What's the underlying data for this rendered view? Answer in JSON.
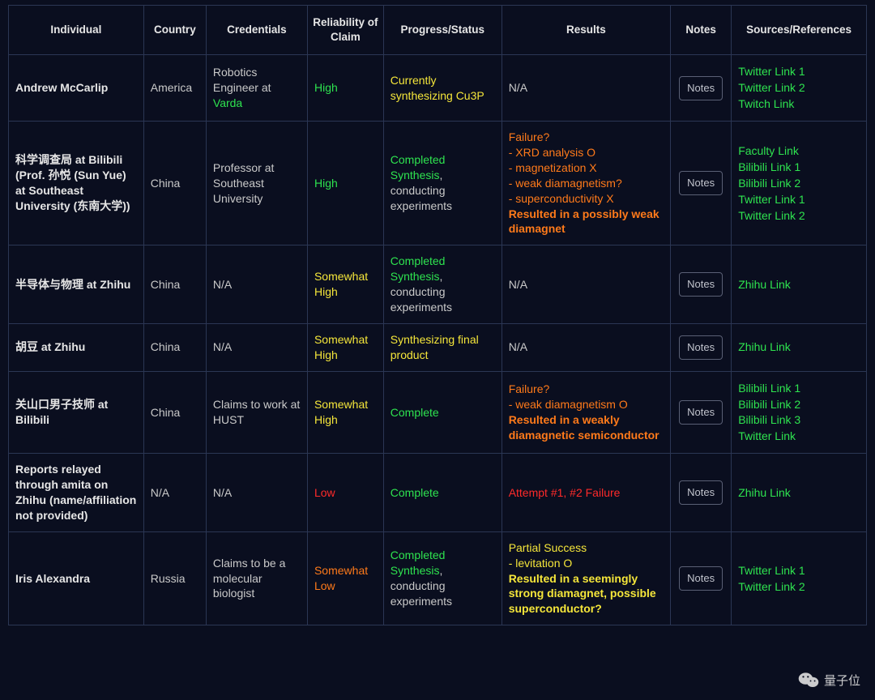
{
  "table": {
    "columns": [
      "Individual",
      "Country",
      "Credentials",
      "Reliability of Claim",
      "Progress/Status",
      "Results",
      "Notes",
      "Sources/References"
    ],
    "notes_button_label": "Notes",
    "colors": {
      "background": "#0a0e1f",
      "border": "#2b3654",
      "text": "#c9c9c9",
      "bold_text": "#e6e6e6",
      "link_green": "#2ee34f",
      "yellow": "#f5e63a",
      "orange": "#ff7a1a",
      "red": "#ff2a2a"
    },
    "rows": [
      {
        "individual": "Andrew McCarlip",
        "country": "America",
        "credentials_pre": "Robotics Engineer at ",
        "credentials_link": "Varda",
        "reliability": "High",
        "reliability_class": "green",
        "progress": [
          {
            "t": "Currently synthesizing Cu3P",
            "c": "yellow"
          }
        ],
        "results": [
          {
            "t": "N/A",
            "c": "gray"
          }
        ],
        "sources": [
          "Twitter Link 1",
          "Twitter Link 2",
          "Twitch Link"
        ]
      },
      {
        "individual": "科学调查局 at Bilibili (Prof. 孙悦 (Sun Yue) at Southeast University (东南大学))",
        "country": "China",
        "credentials_pre": "Professor at Southeast University",
        "credentials_link": "",
        "reliability": "High",
        "reliability_class": "green",
        "progress": [
          {
            "t": "Completed Synthesis",
            "c": "green"
          },
          {
            "t": ", conducting experiments",
            "c": "gray"
          }
        ],
        "results": [
          {
            "t": "Failure?",
            "c": "orange"
          },
          {
            "t": "- XRD analysis O",
            "c": "orange"
          },
          {
            "t": "- magnetization X",
            "c": "orange"
          },
          {
            "t": "- weak diamagnetism?",
            "c": "orange"
          },
          {
            "t": "- superconductivity X",
            "c": "orange"
          },
          {
            "t": "Resulted in a possibly weak diamagnet",
            "c": "orange",
            "b": true
          }
        ],
        "sources": [
          "Faculty Link",
          "Bilibili Link 1",
          "Bilibili Link 2",
          "Twitter Link 1",
          "Twitter Link 2"
        ]
      },
      {
        "individual": "半导体与物理 at Zhihu",
        "country": "China",
        "credentials_pre": "N/A",
        "credentials_link": "",
        "reliability": "Somewhat High",
        "reliability_class": "yellow",
        "progress": [
          {
            "t": "Completed Synthesis",
            "c": "green"
          },
          {
            "t": ", conducting experiments",
            "c": "gray"
          }
        ],
        "results": [
          {
            "t": "N/A",
            "c": "gray"
          }
        ],
        "sources": [
          "Zhihu Link"
        ]
      },
      {
        "individual": "胡豆 at Zhihu",
        "country": "China",
        "credentials_pre": "N/A",
        "credentials_link": "",
        "reliability": "Somewhat High",
        "reliability_class": "yellow",
        "progress": [
          {
            "t": "Synthesizing final product",
            "c": "yellow"
          }
        ],
        "results": [
          {
            "t": "N/A",
            "c": "gray"
          }
        ],
        "sources": [
          "Zhihu Link"
        ]
      },
      {
        "individual": "关山口男子技师 at Bilibili",
        "country": "China",
        "credentials_pre": "Claims to work at HUST",
        "credentials_link": "",
        "reliability": "Somewhat High",
        "reliability_class": "yellow",
        "progress": [
          {
            "t": "Complete",
            "c": "green"
          }
        ],
        "results": [
          {
            "t": "Failure?",
            "c": "orange"
          },
          {
            "t": "- weak diamagnetism O",
            "c": "orange"
          },
          {
            "t": "Resulted in a weakly diamagnetic semiconductor",
            "c": "orange",
            "b": true
          }
        ],
        "sources": [
          "Bilibili Link 1",
          "Bilibili Link 2",
          "Bilibili Link 3",
          "Twitter Link"
        ]
      },
      {
        "individual": "Reports relayed through amita on Zhihu (name/affiliation not provided)",
        "country": "N/A",
        "credentials_pre": "N/A",
        "credentials_link": "",
        "reliability": "Low",
        "reliability_class": "red",
        "progress": [
          {
            "t": "Complete",
            "c": "green"
          }
        ],
        "results": [
          {
            "t": "Attempt #1, #2 Failure",
            "c": "red"
          }
        ],
        "sources": [
          "Zhihu Link"
        ]
      },
      {
        "individual": "Iris Alexandra",
        "country": "Russia",
        "credentials_pre": "Claims to be a molecular biologist",
        "credentials_link": "",
        "reliability": "Somewhat Low",
        "reliability_class": "orange",
        "progress": [
          {
            "t": "Completed Synthesis",
            "c": "green"
          },
          {
            "t": ", conducting experiments",
            "c": "gray"
          }
        ],
        "results": [
          {
            "t": "Partial Success",
            "c": "yellow"
          },
          {
            "t": "- levitation O",
            "c": "yellow"
          },
          {
            "t": "Resulted in a seemingly strong diamagnet, possible superconductor?",
            "c": "yellow",
            "b": true
          }
        ],
        "sources": [
          "Twitter Link 1",
          "Twitter Link 2"
        ]
      }
    ]
  },
  "watermark": {
    "text": "量子位"
  }
}
